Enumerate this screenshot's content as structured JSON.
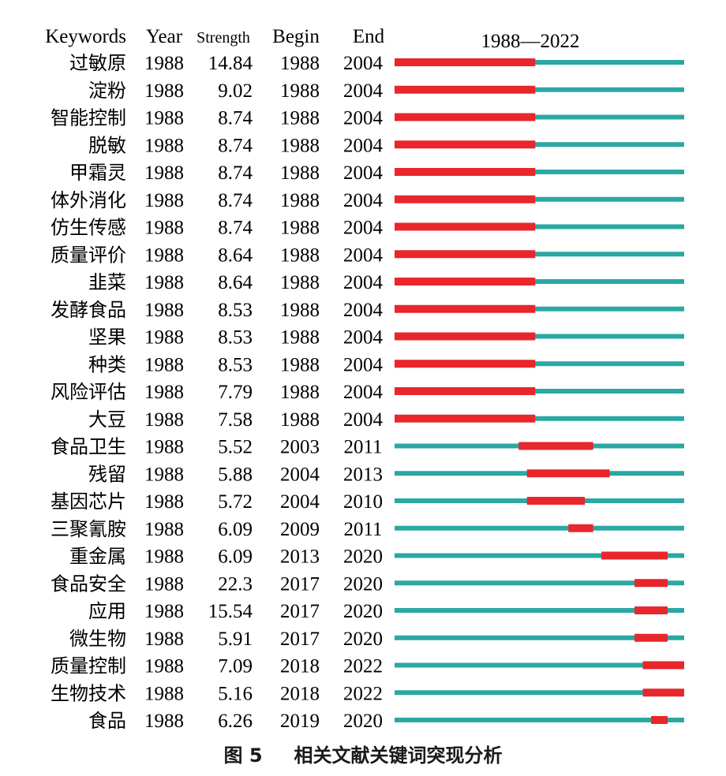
{
  "chart_data": {
    "type": "burst-timeline",
    "range_label": "1988—2022",
    "range": [
      1988,
      2022
    ],
    "headers": {
      "keywords": "Keywords",
      "year": "Year",
      "strength": "Strength",
      "begin": "Begin",
      "end": "End"
    },
    "rows": [
      {
        "keyword": "过敏原",
        "year": "1988",
        "strength": "14.84",
        "begin": "1988",
        "end": "2004"
      },
      {
        "keyword": "淀粉",
        "year": "1988",
        "strength": "9.02",
        "begin": "1988",
        "end": "2004"
      },
      {
        "keyword": "智能控制",
        "year": "1988",
        "strength": "8.74",
        "begin": "1988",
        "end": "2004"
      },
      {
        "keyword": "脱敏",
        "year": "1988",
        "strength": "8.74",
        "begin": "1988",
        "end": "2004"
      },
      {
        "keyword": "甲霜灵",
        "year": "1988",
        "strength": "8.74",
        "begin": "1988",
        "end": "2004"
      },
      {
        "keyword": "体外消化",
        "year": "1988",
        "strength": "8.74",
        "begin": "1988",
        "end": "2004"
      },
      {
        "keyword": "仿生传感",
        "year": "1988",
        "strength": "8.74",
        "begin": "1988",
        "end": "2004"
      },
      {
        "keyword": "质量评价",
        "year": "1988",
        "strength": "8.64",
        "begin": "1988",
        "end": "2004"
      },
      {
        "keyword": "韭菜",
        "year": "1988",
        "strength": "8.64",
        "begin": "1988",
        "end": "2004"
      },
      {
        "keyword": "发酵食品",
        "year": "1988",
        "strength": "8.53",
        "begin": "1988",
        "end": "2004"
      },
      {
        "keyword": "坚果",
        "year": "1988",
        "strength": "8.53",
        "begin": "1988",
        "end": "2004"
      },
      {
        "keyword": "种类",
        "year": "1988",
        "strength": "8.53",
        "begin": "1988",
        "end": "2004"
      },
      {
        "keyword": "风险评估",
        "year": "1988",
        "strength": "7.79",
        "begin": "1988",
        "end": "2004"
      },
      {
        "keyword": "大豆",
        "year": "1988",
        "strength": "7.58",
        "begin": "1988",
        "end": "2004"
      },
      {
        "keyword": "食品卫生",
        "year": "1988",
        "strength": "5.52",
        "begin": "2003",
        "end": "2011"
      },
      {
        "keyword": "残留",
        "year": "1988",
        "strength": "5.88",
        "begin": "2004",
        "end": "2013"
      },
      {
        "keyword": "基因芯片",
        "year": "1988",
        "strength": "5.72",
        "begin": "2004",
        "end": "2010"
      },
      {
        "keyword": "三聚氰胺",
        "year": "1988",
        "strength": "6.09",
        "begin": "2009",
        "end": "2011"
      },
      {
        "keyword": "重金属",
        "year": "1988",
        "strength": "6.09",
        "begin": "2013",
        "end": "2020"
      },
      {
        "keyword": "食品安全",
        "year": "1988",
        "strength": "22.3",
        "begin": "2017",
        "end": "2020"
      },
      {
        "keyword": "应用",
        "year": "1988",
        "strength": "15.54",
        "begin": "2017",
        "end": "2020"
      },
      {
        "keyword": "微生物",
        "year": "1988",
        "strength": "5.91",
        "begin": "2017",
        "end": "2020"
      },
      {
        "keyword": "质量控制",
        "year": "1988",
        "strength": "7.09",
        "begin": "2018",
        "end": "2022"
      },
      {
        "keyword": "生物技术",
        "year": "1988",
        "strength": "5.16",
        "begin": "2018",
        "end": "2022"
      },
      {
        "keyword": "食品",
        "year": "1988",
        "strength": "6.26",
        "begin": "2019",
        "end": "2020"
      }
    ],
    "colors": {
      "burst": "#e8262b",
      "baseline": "#2aa8a3"
    }
  },
  "caption": {
    "figure": "图 5",
    "title": "相关文献关键词突现分析"
  }
}
